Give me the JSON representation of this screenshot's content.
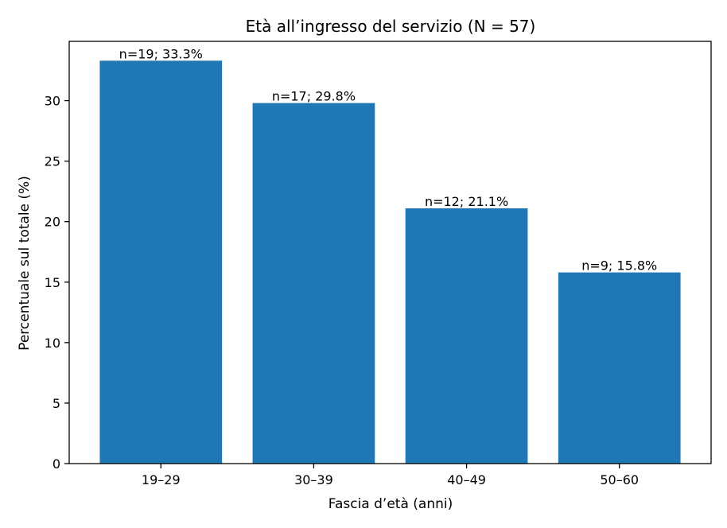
{
  "chart_data": {
    "type": "bar",
    "title": "Età all’ingresso del servizio (N = 57)",
    "xlabel": "Fascia d’età (anni)",
    "ylabel": "Percentuale sul totale (%)",
    "categories": [
      "19–29",
      "30–39",
      "40–49",
      "50–60"
    ],
    "values": [
      33.3,
      29.8,
      21.1,
      15.8
    ],
    "data_labels": [
      "n=19; 33.3%",
      "n=17; 29.8%",
      "n=12; 21.1%",
      "n=9; 15.8%"
    ],
    "ylim": [
      0,
      34.9
    ],
    "yticks": [
      0,
      5,
      10,
      15,
      20,
      25,
      30
    ],
    "grid": false,
    "bar_color": "#1f77b4"
  }
}
